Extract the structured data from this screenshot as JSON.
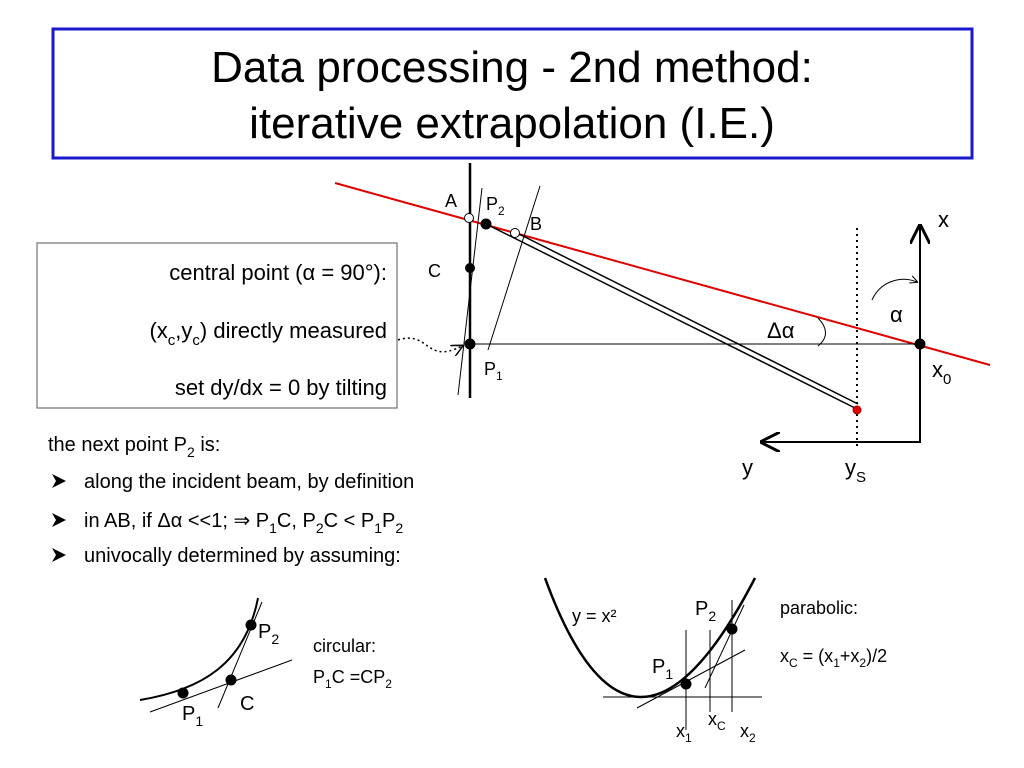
{
  "title": [
    "Data processing - 2nd method:",
    "iterative extrapolation (I.E.)"
  ],
  "box": {
    "lines": [
      [
        "central point (α = 90°):"
      ],
      [
        "(x",
        "c",
        ",y",
        "c",
        ") directly measured"
      ],
      [
        "set  dy/dx = 0  by tilting"
      ]
    ]
  },
  "text": {
    "intro": [
      "the next point P",
      "2",
      " is:"
    ],
    "bullets": [
      [
        "along the incident beam, by definition"
      ],
      [
        "in AB, if Δα <<1; ⇒ P",
        "1",
        "C, P",
        "2",
        "C < P",
        "1",
        "P",
        "2"
      ],
      [
        "univocally determined by assuming:"
      ]
    ]
  },
  "diagram": {
    "labels": {
      "A": [
        "A"
      ],
      "P2": [
        "P",
        "2"
      ],
      "B": [
        "B"
      ],
      "C": [
        "C"
      ],
      "P1": [
        "P",
        "1"
      ],
      "delta_alpha": [
        "Δα"
      ],
      "alpha": [
        "α"
      ],
      "x": [
        "x"
      ],
      "x0": [
        "x",
        "0"
      ],
      "y": [
        "y"
      ],
      "yS": [
        "y",
        "S"
      ]
    }
  },
  "circular": {
    "labels": {
      "P2": [
        "P",
        "2"
      ],
      "P1": [
        "P",
        "1"
      ],
      "C": [
        "C"
      ]
    },
    "caption": [
      [
        "circular:"
      ],
      [
        "P",
        "1",
        "C =CP",
        "2"
      ]
    ]
  },
  "parabolic": {
    "labels": {
      "equation": [
        "y = x²"
      ],
      "P2": [
        "P",
        "2"
      ],
      "P1": [
        "P",
        "1"
      ],
      "x1": [
        "x",
        "1"
      ],
      "xC": [
        "x",
        "C"
      ],
      "x2": [
        "x",
        "2"
      ]
    },
    "caption": [
      [
        "parabolic:"
      ],
      [
        "x",
        "C",
        " = (x",
        "1",
        "+x",
        "2",
        ")/2"
      ]
    ]
  }
}
